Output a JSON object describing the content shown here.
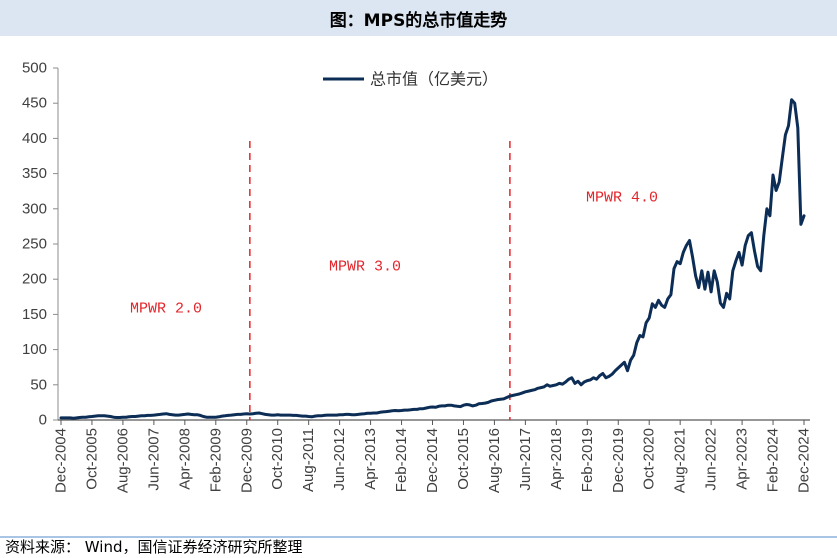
{
  "chart_data": {
    "type": "line",
    "title": "图：MPS的总市值走势",
    "ylim": [
      0,
      500
    ],
    "yticks": [
      0,
      50,
      100,
      150,
      200,
      250,
      300,
      350,
      400,
      450,
      500
    ],
    "xticks": [
      "Dec-2004",
      "Oct-2005",
      "Aug-2006",
      "Jun-2007",
      "Apr-2008",
      "Feb-2009",
      "Dec-2009",
      "Oct-2010",
      "Aug-2011",
      "Jun-2012",
      "Apr-2013",
      "Feb-2014",
      "Dec-2014",
      "Oct-2015",
      "Aug-2016",
      "Jun-2017",
      "Apr-2018",
      "Feb-2019",
      "Dec-2019",
      "Oct-2020",
      "Aug-2021",
      "Jun-2022",
      "Apr-2023",
      "Feb-2024",
      "Dec-2024"
    ],
    "grid": false,
    "legend": {
      "position": "top-center"
    },
    "colors": {
      "series_line": "#0c2d55",
      "annotation": "#e3262b",
      "header_band": "#dce6f2"
    },
    "series": [
      {
        "name": "总市值（亿美元）",
        "x": [
          "Dec-2004",
          "Jan-2005",
          "Feb-2005",
          "Mar-2005",
          "Apr-2005",
          "May-2005",
          "Jun-2005",
          "Jul-2005",
          "Aug-2005",
          "Sep-2005",
          "Oct-2005",
          "Nov-2005",
          "Dec-2005",
          "Jan-2006",
          "Feb-2006",
          "Mar-2006",
          "Apr-2006",
          "May-2006",
          "Jun-2006",
          "Jul-2006",
          "Aug-2006",
          "Sep-2006",
          "Oct-2006",
          "Nov-2006",
          "Dec-2006",
          "Jan-2007",
          "Feb-2007",
          "Mar-2007",
          "Apr-2007",
          "May-2007",
          "Jun-2007",
          "Jul-2007",
          "Aug-2007",
          "Sep-2007",
          "Oct-2007",
          "Nov-2007",
          "Dec-2007",
          "Jan-2008",
          "Feb-2008",
          "Mar-2008",
          "Apr-2008",
          "May-2008",
          "Jun-2008",
          "Jul-2008",
          "Aug-2008",
          "Sep-2008",
          "Oct-2008",
          "Nov-2008",
          "Dec-2008",
          "Jan-2009",
          "Feb-2009",
          "Mar-2009",
          "Apr-2009",
          "May-2009",
          "Jun-2009",
          "Jul-2009",
          "Aug-2009",
          "Sep-2009",
          "Oct-2009",
          "Nov-2009",
          "Dec-2009",
          "Jan-2010",
          "Feb-2010",
          "Mar-2010",
          "Apr-2010",
          "May-2010",
          "Jun-2010",
          "Jul-2010",
          "Aug-2010",
          "Sep-2010",
          "Oct-2010",
          "Nov-2010",
          "Dec-2010",
          "Jan-2011",
          "Feb-2011",
          "Mar-2011",
          "Apr-2011",
          "May-2011",
          "Jun-2011",
          "Jul-2011",
          "Aug-2011",
          "Sep-2011",
          "Oct-2011",
          "Nov-2011",
          "Dec-2011",
          "Jan-2012",
          "Feb-2012",
          "Mar-2012",
          "Apr-2012",
          "May-2012",
          "Jun-2012",
          "Jul-2012",
          "Aug-2012",
          "Sep-2012",
          "Oct-2012",
          "Nov-2012",
          "Dec-2012",
          "Jan-2013",
          "Feb-2013",
          "Mar-2013",
          "Apr-2013",
          "May-2013",
          "Jun-2013",
          "Jul-2013",
          "Aug-2013",
          "Sep-2013",
          "Oct-2013",
          "Nov-2013",
          "Dec-2013",
          "Jan-2014",
          "Feb-2014",
          "Mar-2014",
          "Apr-2014",
          "May-2014",
          "Jun-2014",
          "Jul-2014",
          "Aug-2014",
          "Sep-2014",
          "Oct-2014",
          "Nov-2014",
          "Dec-2014",
          "Jan-2015",
          "Feb-2015",
          "Mar-2015",
          "Apr-2015",
          "May-2015",
          "Jun-2015",
          "Jul-2015",
          "Aug-2015",
          "Sep-2015",
          "Oct-2015",
          "Nov-2015",
          "Dec-2015",
          "Jan-2016",
          "Feb-2016",
          "Mar-2016",
          "Apr-2016",
          "May-2016",
          "Jun-2016",
          "Jul-2016",
          "Aug-2016",
          "Sep-2016",
          "Oct-2016",
          "Nov-2016",
          "Dec-2016",
          "Jan-2017",
          "Feb-2017",
          "Mar-2017",
          "Apr-2017",
          "May-2017",
          "Jun-2017",
          "Jul-2017",
          "Aug-2017",
          "Sep-2017",
          "Oct-2017",
          "Nov-2017",
          "Dec-2017",
          "Jan-2018",
          "Feb-2018",
          "Mar-2018",
          "Apr-2018",
          "May-2018",
          "Jun-2018",
          "Jul-2018",
          "Aug-2018",
          "Sep-2018",
          "Oct-2018",
          "Nov-2018",
          "Dec-2018",
          "Jan-2019",
          "Feb-2019",
          "Mar-2019",
          "Apr-2019",
          "May-2019",
          "Jun-2019",
          "Jul-2019",
          "Aug-2019",
          "Sep-2019",
          "Oct-2019",
          "Nov-2019",
          "Dec-2019",
          "Jan-2020",
          "Feb-2020",
          "Mar-2020",
          "Apr-2020",
          "May-2020",
          "Jun-2020",
          "Jul-2020",
          "Aug-2020",
          "Sep-2020",
          "Oct-2020",
          "Nov-2020",
          "Dec-2020",
          "Jan-2021",
          "Feb-2021",
          "Mar-2021",
          "Apr-2021",
          "May-2021",
          "Jun-2021",
          "Jul-2021",
          "Aug-2021",
          "Sep-2021",
          "Oct-2021",
          "Nov-2021",
          "Dec-2021",
          "Jan-2022",
          "Feb-2022",
          "Mar-2022",
          "Apr-2022",
          "May-2022",
          "Jun-2022",
          "Jul-2022",
          "Aug-2022",
          "Sep-2022",
          "Oct-2022",
          "Nov-2022",
          "Dec-2022",
          "Jan-2023",
          "Feb-2023",
          "Mar-2023",
          "Apr-2023",
          "May-2023",
          "Jun-2023",
          "Jul-2023",
          "Aug-2023",
          "Sep-2023",
          "Oct-2023",
          "Nov-2023",
          "Dec-2023",
          "Jan-2024",
          "Feb-2024",
          "Mar-2024",
          "Apr-2024",
          "May-2024",
          "Jun-2024",
          "Jul-2024",
          "Aug-2024",
          "Sep-2024",
          "Oct-2024",
          "Nov-2024",
          "Dec-2024"
        ],
        "values": [
          3,
          3,
          3,
          3,
          2.5,
          3,
          3.5,
          4,
          4,
          4.5,
          5,
          5.5,
          6,
          6,
          6,
          5.5,
          5,
          4,
          3.5,
          3.5,
          4,
          4,
          4.5,
          5,
          5,
          5.5,
          6,
          6,
          6.5,
          6.5,
          7,
          7.5,
          8,
          8.5,
          9,
          8,
          7.5,
          7,
          7,
          7.5,
          8,
          8.5,
          8,
          7.5,
          7.5,
          6.5,
          5,
          4,
          4,
          4,
          4,
          4.5,
          5.5,
          6,
          6.5,
          7,
          7.5,
          8,
          8,
          8.5,
          9,
          8.5,
          9,
          9.5,
          10,
          9,
          8,
          7.5,
          7,
          7,
          7.5,
          7,
          7,
          7,
          7,
          6.5,
          6.5,
          6,
          5.5,
          5.5,
          5,
          4.5,
          5.5,
          6,
          6,
          6.5,
          7,
          7,
          7,
          7,
          7.5,
          7.5,
          8,
          8,
          7.5,
          7.5,
          8,
          8.5,
          9,
          9.5,
          9.5,
          10,
          10,
          11,
          11.5,
          12,
          12.5,
          13,
          13.5,
          13,
          13.5,
          14,
          14,
          14.5,
          15,
          15,
          16,
          16,
          17,
          18,
          18.5,
          18,
          19.5,
          20,
          20,
          21,
          21,
          20,
          19.5,
          19,
          21,
          22,
          21.5,
          20,
          21,
          23,
          23.5,
          24,
          25,
          27,
          28,
          29,
          29.5,
          30,
          32,
          34,
          35,
          36,
          37,
          38.5,
          40,
          41,
          42,
          43,
          45,
          46,
          47,
          50,
          48,
          49,
          50,
          52,
          51,
          54,
          58,
          60,
          52,
          55,
          50,
          54,
          56,
          57,
          60,
          58,
          63,
          66,
          60,
          62,
          65,
          70,
          74,
          78,
          82,
          70,
          85,
          92,
          110,
          120,
          118,
          138,
          145,
          165,
          160,
          170,
          163,
          160,
          172,
          178,
          215,
          225,
          222,
          238,
          248,
          255,
          232,
          205,
          188,
          212,
          186,
          210,
          182,
          212,
          196,
          166,
          160,
          180,
          172,
          212,
          226,
          238,
          220,
          248,
          262,
          266,
          240,
          218,
          212,
          262,
          300,
          290,
          348,
          326,
          338,
          372,
          405,
          418,
          455,
          450,
          415,
          278,
          290
        ]
      }
    ],
    "reference_lines": [
      {
        "x": "Jan-2010",
        "style": "dashed"
      },
      {
        "x": "Jan-2017",
        "style": "dashed"
      }
    ],
    "annotations": [
      {
        "text": "MPWR 2.0"
      },
      {
        "text": "MPWR 3.0"
      },
      {
        "text": "MPWR 4.0"
      }
    ]
  },
  "footer": {
    "source": "资料来源： Wind，国信证券经济研究所整理"
  }
}
